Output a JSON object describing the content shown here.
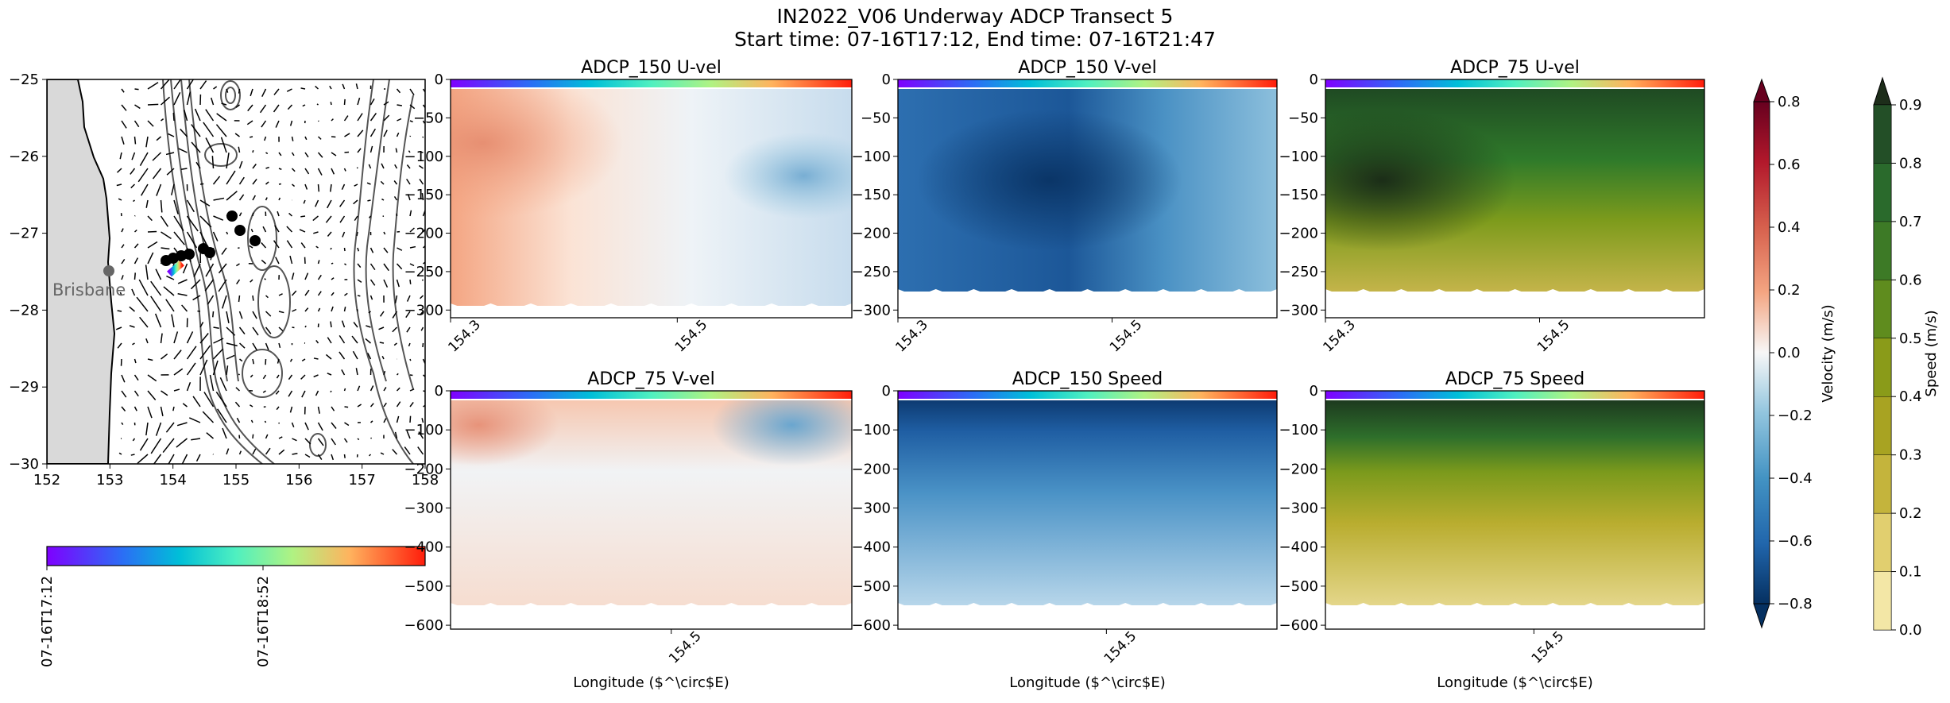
{
  "figure": {
    "title_line1": "IN2022_V06 Underway ADCP Transect 5",
    "title_line2": "Start time: 07-16T17:12, End time: 07-16T21:47"
  },
  "map": {
    "location_label": "Brisbane",
    "x_ticks": [
      "152",
      "153",
      "154",
      "155",
      "156",
      "157",
      "158"
    ],
    "y_ticks": [
      "−25",
      "−26",
      "−27",
      "−28",
      "−29",
      "−30"
    ],
    "xlim": [
      152,
      158
    ],
    "ylim": [
      -30,
      -25
    ],
    "colorbar_ticks": [
      "07-16T17:12",
      "07-16T18:52"
    ]
  },
  "chart_data": [
    {
      "type": "heatmap",
      "title": "ADCP_150 U-vel",
      "x_ticks": [
        "154.3",
        "154.5"
      ],
      "y_ticks": [
        "0",
        "−50",
        "−100",
        "−150",
        "−200",
        "−250",
        "−300"
      ],
      "ylim": [
        -310,
        0
      ],
      "colormap": "RdBu_r",
      "xlabel": ""
    },
    {
      "type": "heatmap",
      "title": "ADCP_150 V-vel",
      "x_ticks": [
        "154.3",
        "154.5"
      ],
      "y_ticks": [
        "0",
        "−50",
        "−100",
        "−150",
        "−200",
        "−250",
        "−300"
      ],
      "ylim": [
        -310,
        0
      ],
      "colormap": "RdBu_r",
      "xlabel": ""
    },
    {
      "type": "heatmap",
      "title": "ADCP_75 U-vel",
      "x_ticks": [
        "154.3",
        "154.5"
      ],
      "y_ticks": [
        "0",
        "−50",
        "−100",
        "−150",
        "−200",
        "−250",
        "−300"
      ],
      "ylim": [
        -310,
        0
      ],
      "colormap": "speed",
      "xlabel": ""
    },
    {
      "type": "heatmap",
      "title": "ADCP_75 V-vel",
      "x_ticks": [
        "154.5"
      ],
      "y_ticks": [
        "0",
        "−100",
        "−200",
        "−300",
        "−400",
        "−500",
        "−600"
      ],
      "ylim": [
        -610,
        0
      ],
      "colormap": "RdBu_r",
      "xlabel": "Longitude ($^\\circ$E)"
    },
    {
      "type": "heatmap",
      "title": "ADCP_150 Speed",
      "x_ticks": [
        "154.5"
      ],
      "y_ticks": [
        "0",
        "−100",
        "−200",
        "−300",
        "−400",
        "−500",
        "−600"
      ],
      "ylim": [
        -610,
        0
      ],
      "colormap": "RdBu_r",
      "xlabel": "Longitude ($^\\circ$E)"
    },
    {
      "type": "heatmap",
      "title": "ADCP_75 Speed",
      "x_ticks": [
        "154.5"
      ],
      "y_ticks": [
        "0",
        "−100",
        "−200",
        "−300",
        "−400",
        "−500",
        "−600"
      ],
      "ylim": [
        -610,
        0
      ],
      "colormap": "speed",
      "xlabel": "Longitude ($^\\circ$E)"
    }
  ],
  "colorbars": {
    "velocity": {
      "label": "Velocity (m/s)",
      "ticks": [
        "0.8",
        "0.6",
        "0.4",
        "0.2",
        "0.0",
        "−0.2",
        "−0.4",
        "−0.6",
        "−0.8"
      ],
      "range": [
        -0.8,
        0.8
      ]
    },
    "speed": {
      "label": "Speed (m/s)",
      "ticks": [
        "0.9",
        "0.8",
        "0.7",
        "0.6",
        "0.5",
        "0.4",
        "0.3",
        "0.2",
        "0.1",
        "0.0"
      ],
      "range": [
        0.0,
        0.9
      ]
    }
  },
  "colors": {
    "rd_hi": "#67001f",
    "rd_mid": "#f4a582",
    "white": "#f7f7f7",
    "bu_mid": "#92c5de",
    "bu_lo": "#053061",
    "speed_lo": "#f5e7a3",
    "speed_mid": "#8fa11f",
    "speed_hi": "#1d2d1a",
    "land": "#d9d9d9"
  }
}
